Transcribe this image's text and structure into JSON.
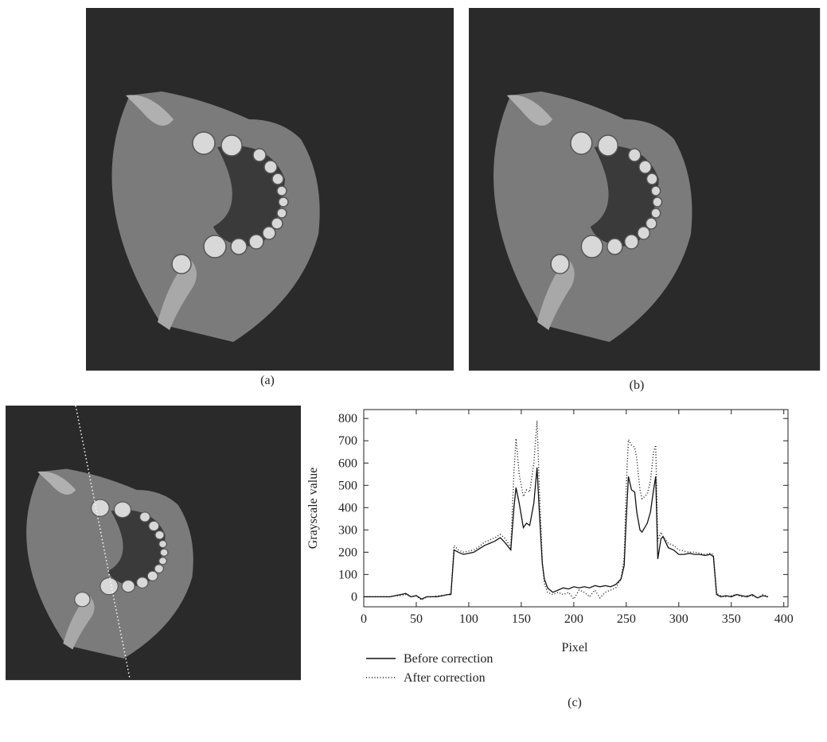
{
  "panels": {
    "a": "(a)",
    "b": "(b)",
    "c": "(c)"
  },
  "chart_data": {
    "type": "line",
    "xlabel": "Pixel",
    "ylabel": "Grayscale value",
    "xlim": [
      0,
      404
    ],
    "ylim": [
      -45,
      840
    ],
    "xticks": [
      0,
      50,
      100,
      150,
      200,
      250,
      300,
      350,
      400
    ],
    "yticks": [
      0,
      100,
      200,
      300,
      400,
      500,
      600,
      700,
      800
    ],
    "x": [
      0,
      5,
      10,
      15,
      20,
      25,
      30,
      35,
      40,
      45,
      50,
      55,
      60,
      65,
      70,
      75,
      80,
      83,
      86,
      90,
      95,
      100,
      105,
      110,
      115,
      120,
      125,
      130,
      135,
      140,
      143,
      145,
      148,
      152,
      155,
      158,
      162,
      165,
      167,
      170,
      172,
      175,
      180,
      185,
      190,
      195,
      200,
      205,
      210,
      215,
      220,
      225,
      230,
      235,
      240,
      245,
      248,
      250,
      252,
      255,
      258,
      260,
      263,
      265,
      270,
      273,
      276,
      278,
      280,
      283,
      285,
      290,
      295,
      300,
      305,
      310,
      315,
      320,
      325,
      330,
      333,
      336,
      340,
      345,
      350,
      355,
      360,
      365,
      370,
      375,
      380,
      385
    ],
    "series": [
      {
        "name": "Before correction",
        "color": "#111111",
        "style": "solid",
        "values": [
          0,
          0,
          0,
          0,
          0,
          0,
          5,
          10,
          15,
          0,
          5,
          -10,
          0,
          0,
          0,
          5,
          10,
          10,
          210,
          200,
          190,
          195,
          200,
          215,
          230,
          240,
          250,
          265,
          240,
          210,
          400,
          490,
          420,
          310,
          330,
          320,
          420,
          580,
          400,
          150,
          80,
          40,
          20,
          30,
          40,
          35,
          45,
          40,
          45,
          40,
          50,
          45,
          50,
          45,
          55,
          80,
          140,
          350,
          540,
          480,
          470,
          380,
          300,
          290,
          330,
          380,
          480,
          540,
          170,
          260,
          270,
          220,
          210,
          190,
          190,
          195,
          190,
          190,
          185,
          190,
          180,
          10,
          0,
          5,
          0,
          10,
          5,
          0,
          10,
          -5,
          5,
          0
        ]
      },
      {
        "name": "After correction",
        "color": "#111111",
        "style": "dotted",
        "values": [
          0,
          0,
          0,
          0,
          0,
          0,
          5,
          5,
          10,
          0,
          5,
          -15,
          0,
          0,
          5,
          5,
          10,
          15,
          230,
          210,
          200,
          205,
          210,
          225,
          245,
          255,
          265,
          280,
          260,
          220,
          560,
          710,
          550,
          450,
          480,
          470,
          600,
          790,
          520,
          160,
          60,
          20,
          10,
          20,
          10,
          20,
          -10,
          30,
          20,
          0,
          30,
          -5,
          20,
          30,
          40,
          80,
          180,
          500,
          705,
          680,
          670,
          620,
          480,
          440,
          460,
          520,
          650,
          680,
          250,
          290,
          270,
          240,
          230,
          210,
          205,
          200,
          200,
          195,
          190,
          195,
          190,
          15,
          5,
          0,
          5,
          10,
          0,
          5,
          5,
          -5,
          10,
          0
        ]
      }
    ]
  }
}
